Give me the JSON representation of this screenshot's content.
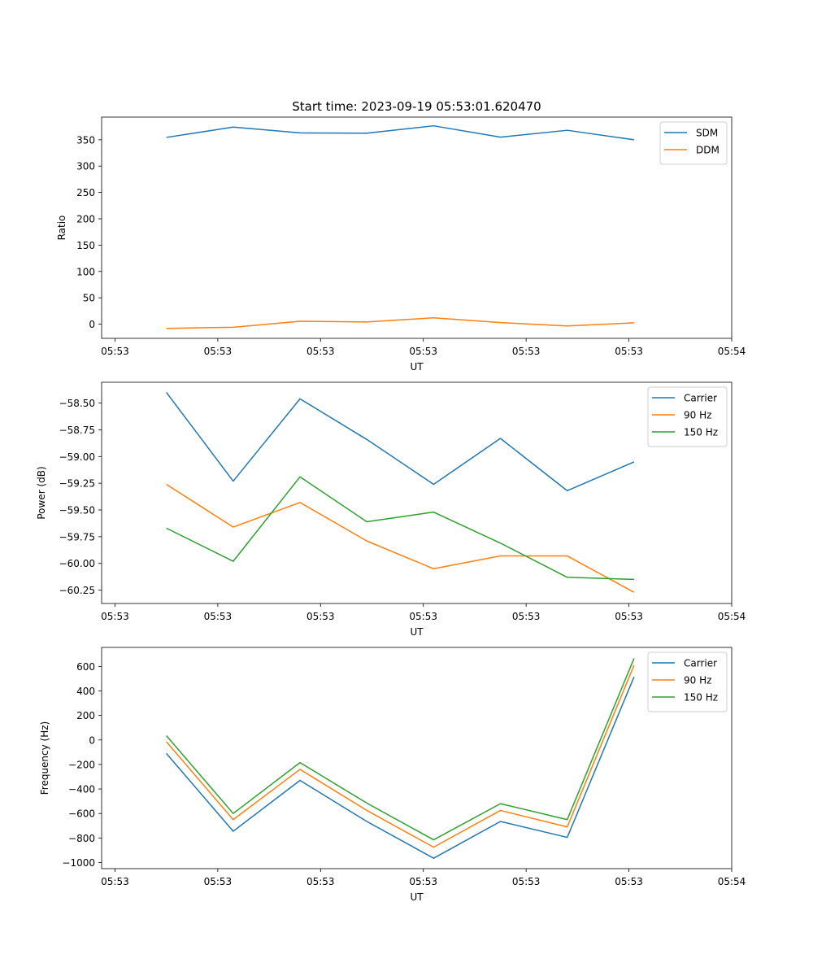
{
  "figure": {
    "title": "Start time: 2023-09-19 05:53:01.620470"
  },
  "chart_data": [
    {
      "type": "line",
      "title": "Start time: 2023-09-19 05:53:01.620470",
      "xlabel": "UT",
      "ylabel": "Ratio",
      "x_ticks": [
        "05:53",
        "05:53",
        "05:53",
        "05:53",
        "05:53",
        "05:53",
        "05:54"
      ],
      "x_tick_values": [
        0,
        1,
        2,
        3,
        4,
        5,
        6
      ],
      "x": [
        0.5,
        1.15,
        1.8,
        2.45,
        3.1,
        3.75,
        4.4,
        5.05
      ],
      "xlim": [
        -0.13,
        6.0
      ],
      "ylim": [
        -27,
        393
      ],
      "y_ticks": [
        0,
        50,
        100,
        150,
        200,
        250,
        300,
        350
      ],
      "y_tick_labels": [
        "0",
        "50",
        "100",
        "150",
        "200",
        "250",
        "300",
        "350"
      ],
      "legend": "top-right",
      "series": [
        {
          "name": "SDM",
          "color": "#1f77b4",
          "values": [
            354.5,
            374,
            363,
            362.5,
            376.5,
            355,
            368,
            350
          ]
        },
        {
          "name": "DDM",
          "color": "#ff7f0e",
          "values": [
            -8,
            -6,
            5.5,
            4,
            12,
            3,
            -3.5,
            2.5
          ]
        }
      ]
    },
    {
      "type": "line",
      "title": "",
      "xlabel": "UT",
      "ylabel": "Power (dB)",
      "x_ticks": [
        "05:53",
        "05:53",
        "05:53",
        "05:53",
        "05:53",
        "05:53",
        "05:54"
      ],
      "x_tick_values": [
        0,
        1,
        2,
        3,
        4,
        5,
        6
      ],
      "x": [
        0.5,
        1.15,
        1.8,
        2.45,
        3.1,
        3.75,
        4.4,
        5.05
      ],
      "xlim": [
        -0.13,
        6.0
      ],
      "ylim": [
        -60.375,
        -58.305
      ],
      "y_ticks": [
        -60.25,
        -60.0,
        -59.75,
        -59.5,
        -59.25,
        -59.0,
        -58.75,
        -58.5
      ],
      "y_tick_labels": [
        "−60.25",
        "−60.00",
        "−59.75",
        "−59.50",
        "−59.25",
        "−59.00",
        "−58.75",
        "−58.50"
      ],
      "legend": "top-right",
      "series": [
        {
          "name": "Carrier",
          "color": "#1f77b4",
          "values": [
            -58.4,
            -59.23,
            -58.46,
            -58.84,
            -59.26,
            -58.83,
            -59.32,
            -59.05
          ]
        },
        {
          "name": "90 Hz",
          "color": "#ff7f0e",
          "values": [
            -59.26,
            -59.66,
            -59.43,
            -59.79,
            -60.05,
            -59.93,
            -59.93,
            -60.27
          ]
        },
        {
          "name": "150 Hz",
          "color": "#2ca02c",
          "values": [
            -59.67,
            -59.98,
            -59.19,
            -59.61,
            -59.52,
            -59.81,
            -60.13,
            -60.15
          ]
        }
      ]
    },
    {
      "type": "line",
      "title": "",
      "xlabel": "UT",
      "ylabel": "Frequency (Hz)",
      "x_ticks": [
        "05:53",
        "05:53",
        "05:53",
        "05:53",
        "05:53",
        "05:53",
        "05:54"
      ],
      "x_tick_values": [
        0,
        1,
        2,
        3,
        4,
        5,
        6
      ],
      "x": [
        0.5,
        1.15,
        1.8,
        2.45,
        3.1,
        3.75,
        4.4,
        5.05
      ],
      "xlim": [
        -0.13,
        6.0
      ],
      "ylim": [
        -1050,
        755
      ],
      "y_ticks": [
        -1000,
        -800,
        -600,
        -400,
        -200,
        0,
        200,
        400,
        600
      ],
      "y_tick_labels": [
        "−1000",
        "−800",
        "−600",
        "−400",
        "−200",
        "0",
        "200",
        "400",
        "600"
      ],
      "legend": "top-right",
      "series": [
        {
          "name": "Carrier",
          "color": "#1f77b4",
          "values": [
            -110,
            -745,
            -330,
            -665,
            -965,
            -665,
            -795,
            515
          ]
        },
        {
          "name": "90 Hz",
          "color": "#ff7f0e",
          "values": [
            -15,
            -650,
            -240,
            -575,
            -875,
            -575,
            -710,
            610
          ]
        },
        {
          "name": "150 Hz",
          "color": "#2ca02c",
          "values": [
            35,
            -600,
            -185,
            -515,
            -815,
            -520,
            -650,
            665
          ]
        }
      ]
    }
  ]
}
